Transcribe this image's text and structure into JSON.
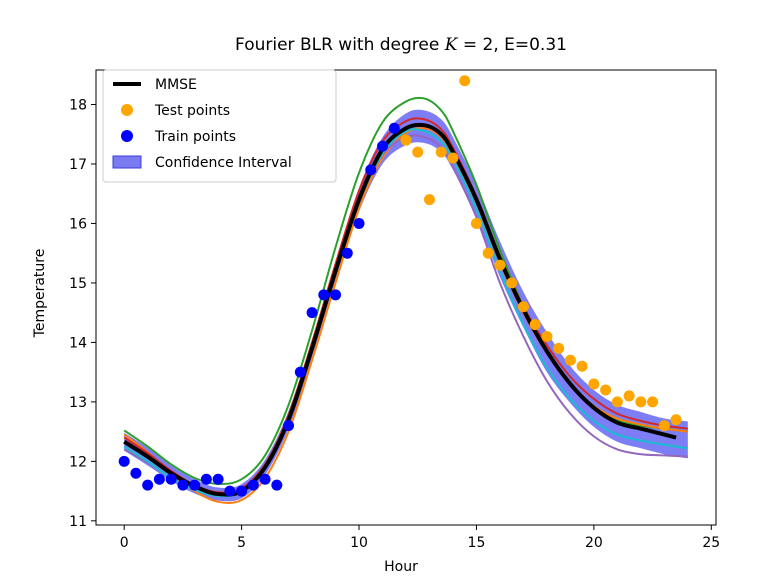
{
  "chart_data": {
    "type": "line",
    "title": "Fourier BLR with degree K = 2, E=0.31",
    "title_parts": {
      "prefix": "Fourier BLR with degree ",
      "K": "K",
      "suffix": " = 2, E=0.31"
    },
    "xlabel": "Hour",
    "ylabel": "Temperature",
    "xlim": [
      -1.2,
      25.2
    ],
    "ylim": [
      10.93,
      18.58
    ],
    "xticks": [
      0,
      5,
      10,
      15,
      20,
      25
    ],
    "yticks": [
      11,
      12,
      13,
      14,
      15,
      16,
      17,
      18
    ],
    "legend_position": "top-left",
    "legend": [
      {
        "label": "MMSE",
        "kind": "line",
        "color": "#000000"
      },
      {
        "label": "Test points",
        "kind": "marker",
        "color": "#ffa500"
      },
      {
        "label": "Train points",
        "kind": "marker",
        "color": "#0000ff"
      },
      {
        "label": "Confidence Interval",
        "kind": "patch",
        "color": "#7b7bf0"
      }
    ],
    "train_points": {
      "x": [
        0,
        0.5,
        1,
        1.5,
        2,
        2.5,
        3,
        3.5,
        4,
        4.5,
        5,
        5.5,
        6,
        6.5,
        7,
        7.5,
        8,
        8.5,
        9,
        9.5,
        10,
        10.5,
        11,
        11.5
      ],
      "y": [
        12.0,
        11.8,
        11.6,
        11.7,
        11.7,
        11.6,
        11.6,
        11.7,
        11.7,
        11.5,
        11.5,
        11.6,
        11.7,
        11.6,
        12.6,
        13.5,
        14.5,
        14.8,
        14.8,
        15.5,
        16.0,
        16.9,
        17.3,
        17.6
      ]
    },
    "test_points": {
      "x": [
        12,
        12.5,
        13,
        13.5,
        14,
        14.5,
        15,
        15.5,
        16,
        16.5,
        17,
        17.5,
        18,
        18.5,
        19,
        19.5,
        20,
        20.5,
        21,
        21.5,
        22,
        22.5,
        23,
        23.5
      ],
      "y": [
        17.4,
        17.2,
        16.4,
        17.2,
        17.1,
        18.4,
        16.0,
        15.5,
        15.3,
        15.0,
        14.6,
        14.3,
        14.1,
        13.9,
        13.7,
        13.6,
        13.3,
        13.2,
        13.0,
        13.1,
        13.0,
        13.0,
        12.6,
        12.7
      ]
    },
    "mmse": {
      "x": [
        0,
        1,
        2,
        3,
        4,
        5,
        6,
        7,
        8,
        9,
        10,
        11,
        12,
        12.8,
        13.5,
        14,
        15,
        16,
        17,
        18,
        19,
        20,
        21,
        22,
        23,
        23.5
      ],
      "y": [
        12.33,
        12.08,
        11.8,
        11.58,
        11.45,
        11.5,
        11.9,
        12.7,
        13.9,
        15.2,
        16.4,
        17.25,
        17.6,
        17.65,
        17.5,
        17.2,
        16.4,
        15.4,
        14.55,
        13.85,
        13.3,
        12.9,
        12.65,
        12.55,
        12.45,
        12.4
      ]
    },
    "confidence_interval": {
      "x": [
        0,
        1,
        2,
        3,
        4,
        5,
        6,
        7,
        8,
        9,
        10,
        11,
        12,
        12.8,
        13.5,
        14,
        15,
        16,
        17,
        18,
        19,
        20,
        21,
        22,
        23,
        24
      ],
      "lower": [
        12.18,
        11.93,
        11.67,
        11.46,
        11.34,
        11.38,
        11.77,
        12.55,
        13.75,
        15.05,
        16.2,
        17.0,
        17.32,
        17.35,
        17.2,
        16.9,
        16.1,
        15.1,
        14.25,
        13.5,
        12.98,
        12.58,
        12.33,
        12.22,
        12.12,
        12.05
      ],
      "upper": [
        12.48,
        12.23,
        11.93,
        11.7,
        11.56,
        11.62,
        12.03,
        12.85,
        14.05,
        15.35,
        16.6,
        17.45,
        17.85,
        17.9,
        17.75,
        17.45,
        16.65,
        15.7,
        14.85,
        14.17,
        13.6,
        13.2,
        12.95,
        12.83,
        12.72,
        12.67
      ]
    },
    "sample_curves": [
      {
        "color": "#2ca02c",
        "x": [
          0,
          1,
          2,
          3,
          4,
          5,
          6,
          7,
          8,
          9,
          10,
          11,
          12,
          12.8,
          13.5,
          14,
          15,
          16,
          17,
          18,
          19,
          20,
          21,
          22,
          23,
          24
        ],
        "y": [
          12.52,
          12.25,
          11.95,
          11.72,
          11.62,
          11.7,
          12.1,
          12.95,
          14.2,
          15.6,
          16.85,
          17.7,
          18.05,
          18.1,
          17.9,
          17.55,
          16.65,
          15.55,
          14.6,
          13.85,
          13.3,
          12.93,
          12.7,
          12.6,
          12.55,
          12.5
        ]
      },
      {
        "color": "#ff7f0e",
        "x": [
          0,
          1,
          2,
          3,
          4,
          5,
          6,
          7,
          8,
          9,
          10,
          11,
          12,
          12.8,
          13.5,
          14,
          15,
          16,
          17,
          18,
          19,
          20,
          21,
          22,
          23,
          24
        ],
        "y": [
          12.45,
          12.15,
          11.8,
          11.5,
          11.32,
          11.35,
          11.72,
          12.5,
          13.7,
          15.0,
          16.25,
          17.1,
          17.52,
          17.6,
          17.45,
          17.15,
          16.35,
          15.35,
          14.5,
          13.82,
          13.3,
          12.93,
          12.72,
          12.62,
          12.55,
          12.5
        ]
      },
      {
        "color": "#9467bd",
        "x": [
          0,
          1,
          2,
          3,
          4,
          5,
          6,
          7,
          8,
          9,
          10,
          11,
          12,
          12.8,
          13.5,
          14,
          15,
          16,
          17,
          18,
          19,
          20,
          21,
          22,
          23,
          24
        ],
        "y": [
          12.2,
          11.98,
          11.72,
          11.52,
          11.42,
          11.48,
          11.88,
          12.7,
          13.88,
          15.15,
          16.35,
          17.15,
          17.45,
          17.45,
          17.28,
          16.95,
          16.1,
          15.0,
          14.1,
          13.35,
          12.8,
          12.42,
          12.2,
          12.12,
          12.1,
          12.08
        ]
      },
      {
        "color": "#d62728",
        "x": [
          0,
          1,
          2,
          3,
          4,
          5,
          6,
          7,
          8,
          9,
          10,
          11,
          12,
          12.8,
          13.5,
          14,
          15,
          16,
          17,
          18,
          19,
          20,
          21,
          22,
          23,
          24
        ],
        "y": [
          12.4,
          12.14,
          11.84,
          11.6,
          11.48,
          11.55,
          11.95,
          12.78,
          14.0,
          15.32,
          16.55,
          17.38,
          17.72,
          17.75,
          17.58,
          17.27,
          16.45,
          15.45,
          14.6,
          13.95,
          13.42,
          13.05,
          12.8,
          12.68,
          12.6,
          12.55
        ]
      },
      {
        "color": "#17becf",
        "x": [
          0,
          1,
          2,
          3,
          4,
          5,
          6,
          7,
          8,
          9,
          10,
          11,
          12,
          12.8,
          13.5,
          14,
          15,
          16,
          17,
          18,
          19,
          20,
          21,
          22,
          23,
          24
        ],
        "y": [
          12.25,
          12.0,
          11.72,
          11.52,
          11.42,
          11.48,
          11.88,
          12.7,
          13.88,
          15.15,
          16.35,
          17.18,
          17.55,
          17.55,
          17.38,
          17.08,
          16.25,
          15.2,
          14.3,
          13.58,
          13.05,
          12.68,
          12.45,
          12.35,
          12.28,
          12.22
        ]
      }
    ],
    "colors": {
      "mmse": "#000000",
      "test": "#ffa500",
      "train": "#0000ff",
      "ci_fill": "#5c5cf2"
    }
  }
}
